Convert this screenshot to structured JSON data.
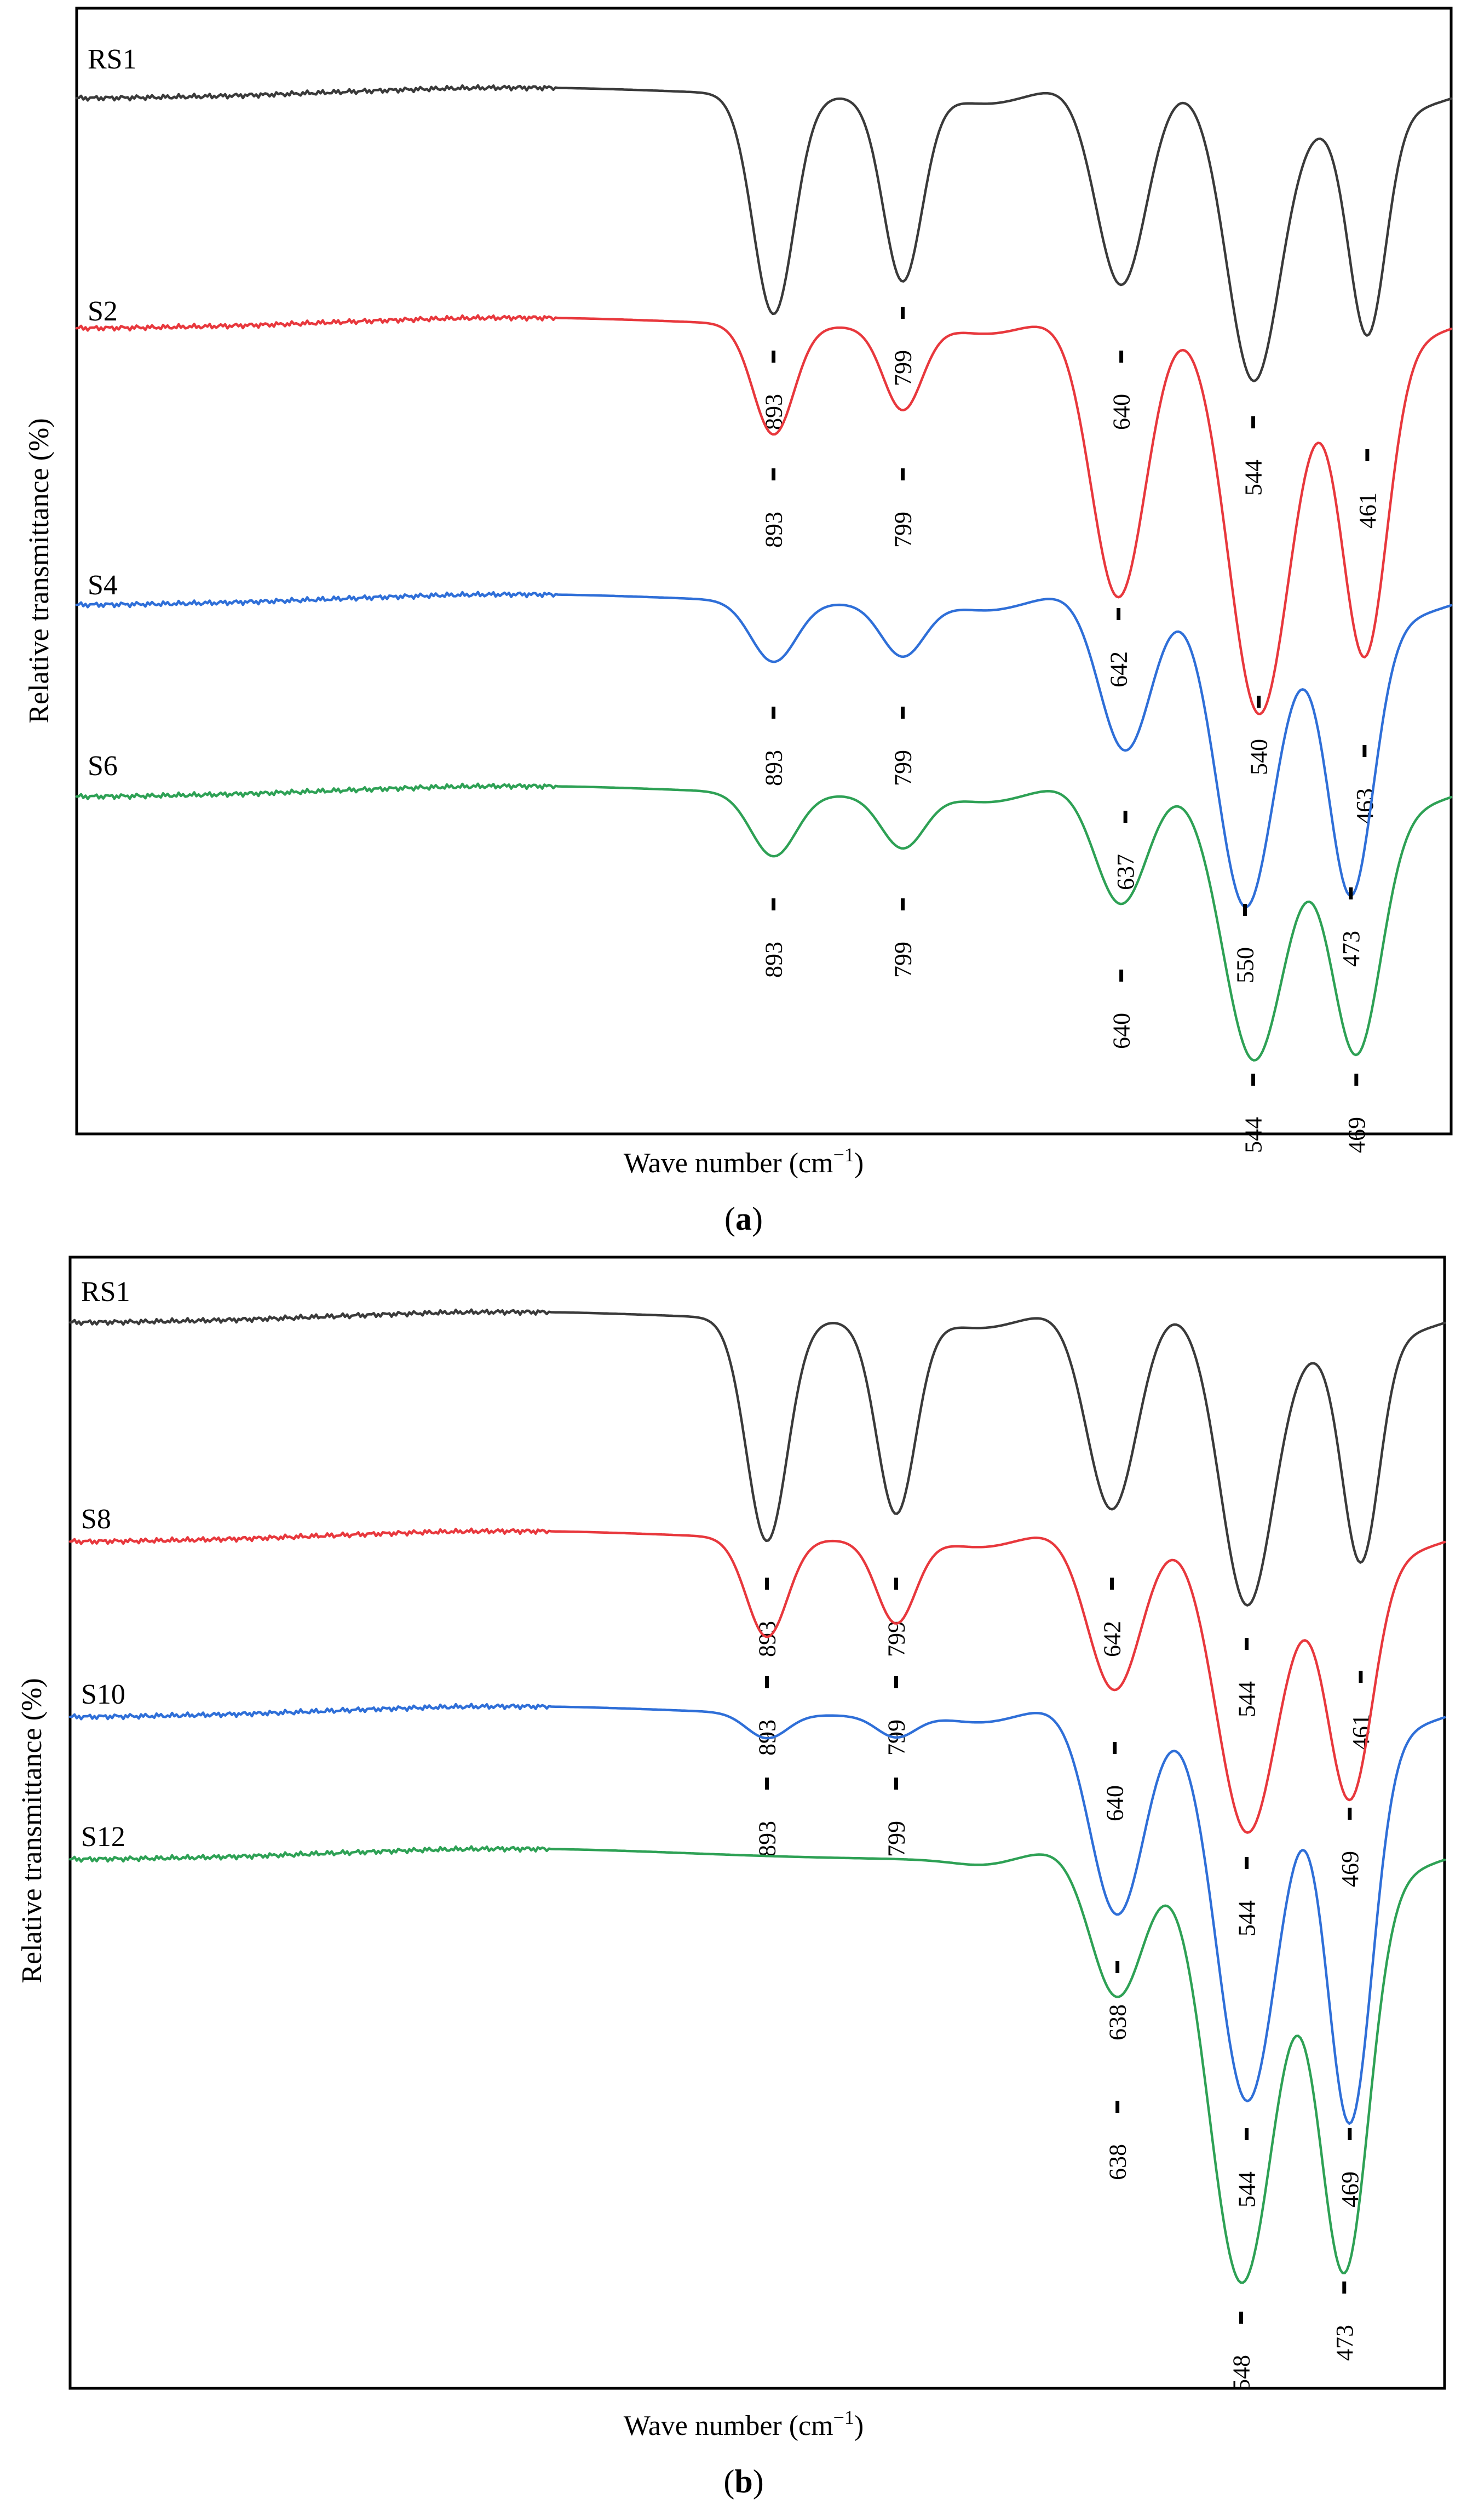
{
  "chart_data": [
    {
      "type": "line",
      "panel_label": "(a)",
      "panel_letter": "a",
      "xlabel": "Wave number (cm",
      "xlabel_exponent": "−1",
      "xlabel_suffix": ")",
      "ylabel": "Relative transmittance (%)",
      "x_direction": "decreasing",
      "xlim": [
        1400,
        400
      ],
      "series": [
        {
          "name": "RS1",
          "color": "#3a3a3a",
          "peaks": [
            893,
            799,
            640,
            544,
            461
          ]
        },
        {
          "name": "S2",
          "color": "#e8383d",
          "peaks": [
            893,
            799,
            642,
            540,
            463
          ]
        },
        {
          "name": "S4",
          "color": "#2f6fd8",
          "peaks": [
            893,
            799,
            637,
            550,
            473
          ]
        },
        {
          "name": "S6",
          "color": "#2ea155",
          "peaks": [
            893,
            799,
            640,
            544,
            469
          ]
        }
      ]
    },
    {
      "type": "line",
      "panel_label": "(b)",
      "panel_letter": "b",
      "xlabel": "Wave number (cm",
      "xlabel_exponent": "−1",
      "xlabel_suffix": ")",
      "ylabel": "Relative transmittance (%)",
      "x_direction": "decreasing",
      "xlim": [
        1400,
        400
      ],
      "series": [
        {
          "name": "RS1",
          "color": "#3a3a3a",
          "peaks": [
            893,
            799,
            642,
            544,
            461
          ]
        },
        {
          "name": "S8",
          "color": "#e8383d",
          "peaks": [
            893,
            799,
            640,
            544,
            469
          ]
        },
        {
          "name": "S10",
          "color": "#2f6fd8",
          "peaks": [
            893,
            799,
            638,
            544,
            469
          ]
        },
        {
          "name": "S12",
          "color": "#2ea155",
          "peaks": [
            638,
            548,
            473
          ]
        }
      ]
    }
  ]
}
